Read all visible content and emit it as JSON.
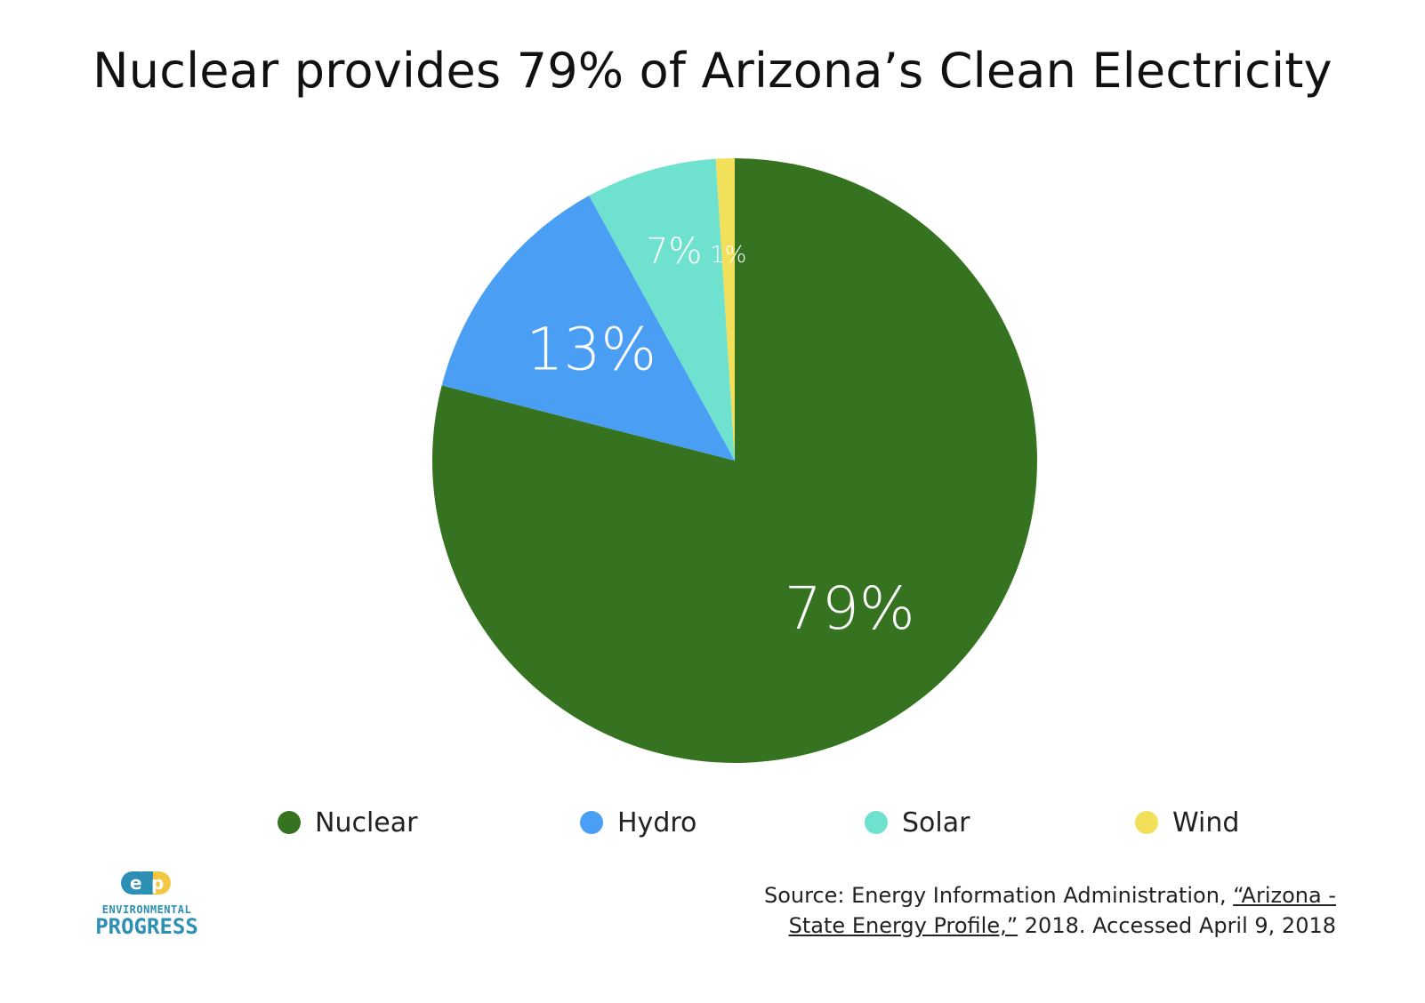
{
  "chart_data": {
    "type": "pie",
    "title": "Nuclear provides 79% of Arizona’s Clean Electricity",
    "slices": [
      {
        "name": "Nuclear",
        "value": 79,
        "label": "79%",
        "color": "#357320"
      },
      {
        "name": "Hydro",
        "value": 13,
        "label": "13%",
        "color": "#4a9ff5"
      },
      {
        "name": "Solar",
        "value": 7,
        "label": "7%",
        "color": "#6ee2cf"
      },
      {
        "name": "Wind",
        "value": 1,
        "label": "1%",
        "color": "#f2e05b"
      }
    ],
    "legend_position": "bottom"
  },
  "source": {
    "prefix": "Source: Energy Information Administration, ",
    "link_line1": "“Arizona -",
    "link_line2": "State Energy Profile,”",
    "suffix": " 2018. Accessed April 9, 2018"
  },
  "logo": {
    "mark": "ep",
    "line1": "ENVIRONMENTAL",
    "line2": "PROGRESS",
    "colors": {
      "blue": "#2e8fb5",
      "yellow": "#f2c744"
    }
  }
}
